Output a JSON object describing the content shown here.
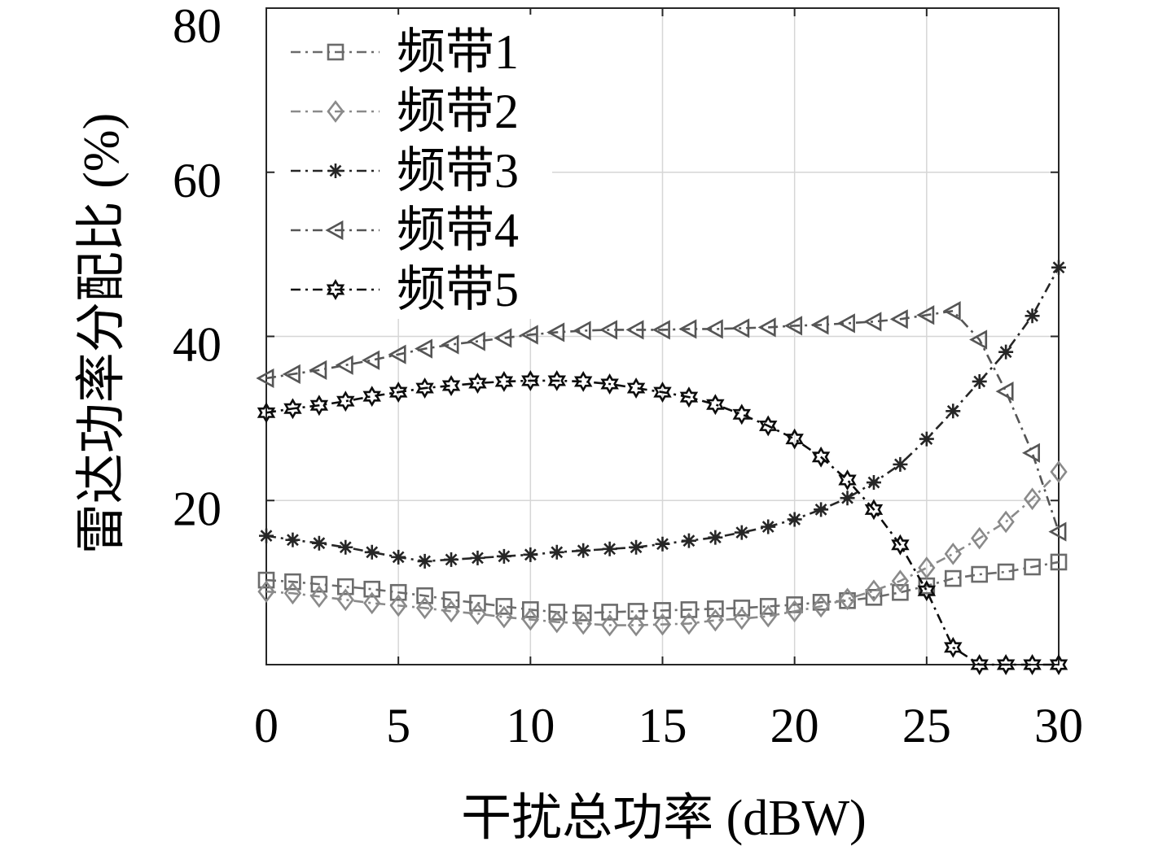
{
  "chart_data": {
    "type": "line",
    "xlabel": "干扰总功率 (dBW)",
    "ylabel": "雷达功率分配比 (%)",
    "xlim": [
      0,
      30
    ],
    "ylim": [
      0,
      80
    ],
    "xticks": [
      0,
      5,
      10,
      15,
      20,
      25,
      30
    ],
    "yticks": [
      20,
      40,
      60,
      80
    ],
    "grid": true,
    "legend_position": "top-left",
    "x": [
      0,
      1,
      2,
      3,
      4,
      5,
      6,
      7,
      8,
      9,
      10,
      11,
      12,
      13,
      14,
      15,
      16,
      17,
      18,
      19,
      20,
      21,
      22,
      23,
      24,
      25,
      26,
      27,
      28,
      29,
      30
    ],
    "series": [
      {
        "name": "频带1",
        "marker": "square",
        "color": "#6b6b6b",
        "values": [
          10.3,
          10.1,
          9.8,
          9.5,
          9.2,
          8.8,
          8.4,
          7.9,
          7.5,
          7.1,
          6.7,
          6.4,
          6.3,
          6.4,
          6.5,
          6.6,
          6.7,
          6.8,
          6.9,
          7.1,
          7.3,
          7.6,
          7.8,
          8.2,
          8.8,
          9.6,
          10.5,
          11.0,
          11.3,
          11.9,
          12.5
        ]
      },
      {
        "name": "频带2",
        "marker": "diamond",
        "color": "#8a8a8a",
        "values": [
          8.9,
          8.7,
          8.3,
          7.9,
          7.5,
          7.2,
          6.9,
          6.5,
          6.2,
          5.8,
          5.5,
          5.2,
          5.0,
          4.8,
          4.8,
          4.9,
          5.0,
          5.4,
          5.6,
          5.9,
          6.5,
          7.1,
          8.0,
          9.0,
          10.2,
          11.8,
          13.5,
          15.4,
          17.4,
          20.2,
          23.5
        ]
      },
      {
        "name": "频带3",
        "marker": "asterisk",
        "color": "#262626",
        "values": [
          15.7,
          15.2,
          14.8,
          14.3,
          13.7,
          13.1,
          12.6,
          12.8,
          13.0,
          13.2,
          13.4,
          13.7,
          13.9,
          14.1,
          14.3,
          14.7,
          15.1,
          15.5,
          16.1,
          16.8,
          17.7,
          18.9,
          20.3,
          22.2,
          24.4,
          27.5,
          30.9,
          34.5,
          38.1,
          42.5,
          48.4
        ]
      },
      {
        "name": "频带4",
        "marker": "triangle-left",
        "color": "#555555",
        "values": [
          34.9,
          35.4,
          35.9,
          36.5,
          37.1,
          37.8,
          38.5,
          39.0,
          39.4,
          39.8,
          40.2,
          40.5,
          40.7,
          40.8,
          40.8,
          40.8,
          40.9,
          40.9,
          41.0,
          41.1,
          41.3,
          41.4,
          41.6,
          41.8,
          42.1,
          42.6,
          43.1,
          39.6,
          33.3,
          25.8,
          16.2
        ]
      },
      {
        "name": "频带5",
        "marker": "hexagram",
        "color": "#0d0d0d",
        "values": [
          30.7,
          31.2,
          31.6,
          32.1,
          32.7,
          33.2,
          33.7,
          34.0,
          34.3,
          34.5,
          34.6,
          34.6,
          34.5,
          34.2,
          33.7,
          33.2,
          32.6,
          31.7,
          30.5,
          29.1,
          27.5,
          25.3,
          22.5,
          18.9,
          14.6,
          9.0,
          2.1,
          0,
          0,
          0,
          0
        ]
      }
    ]
  }
}
